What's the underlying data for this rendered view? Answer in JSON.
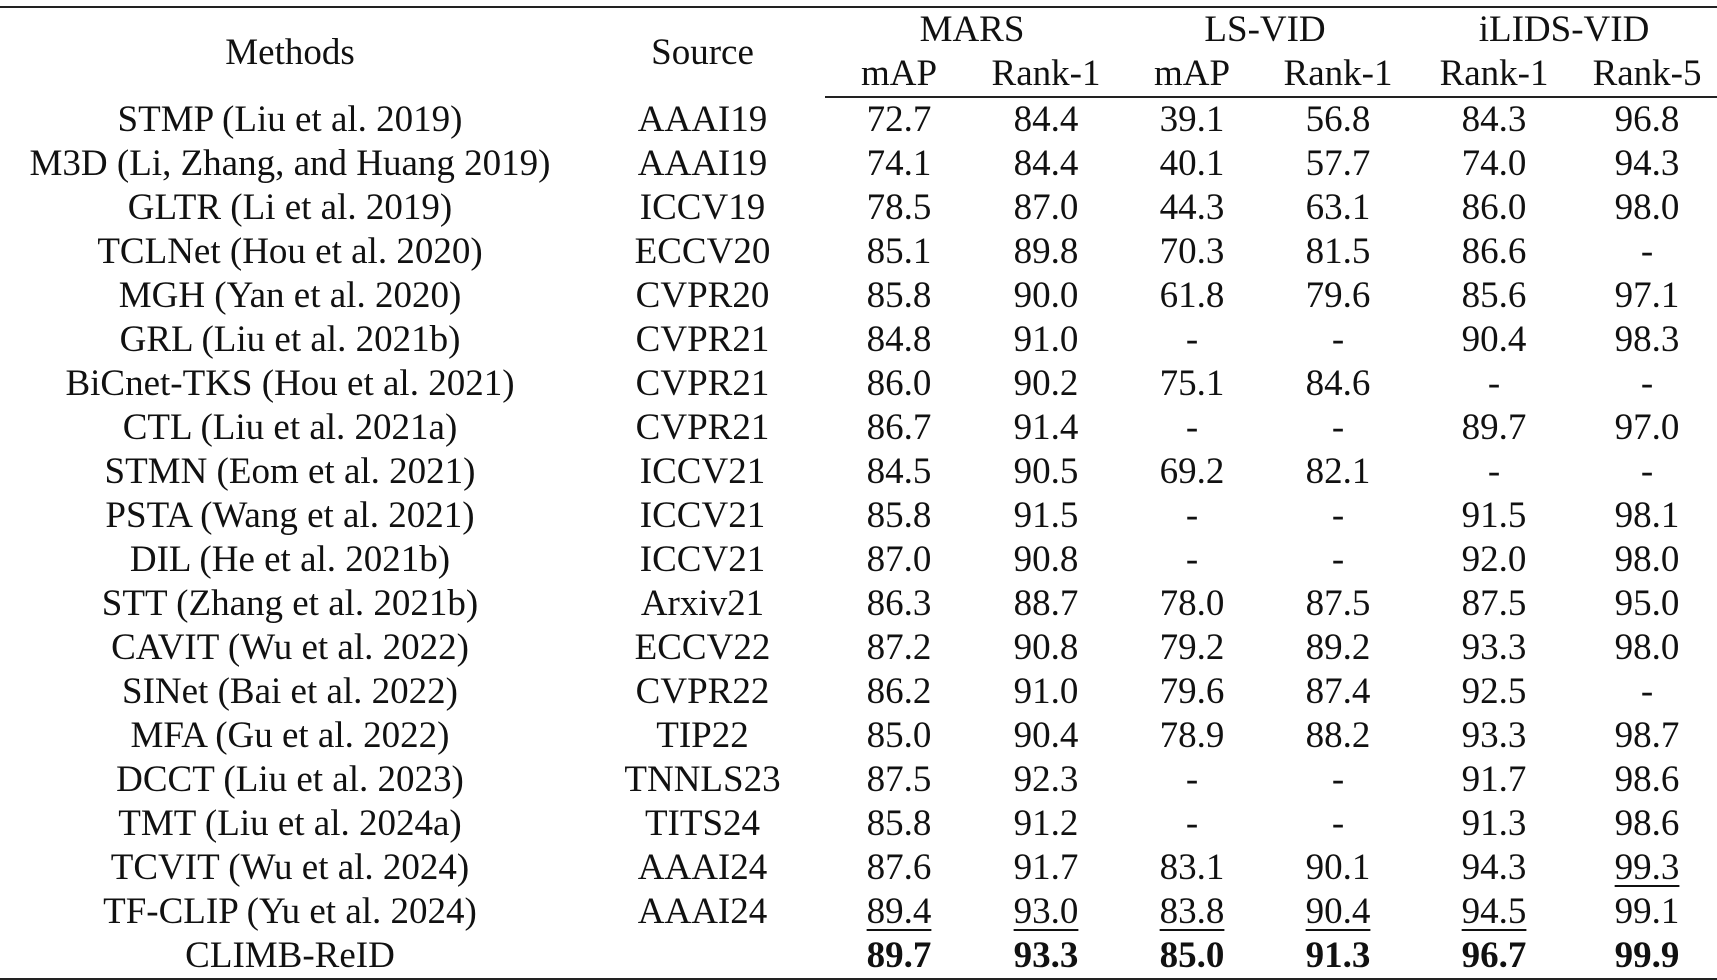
{
  "header": {
    "methods": "Methods",
    "source": "Source",
    "datasets": [
      "MARS",
      "LS-VID",
      "iLIDS-VID"
    ],
    "metrics": [
      "mAP",
      "Rank-1",
      "mAP",
      "Rank-1",
      "Rank-1",
      "Rank-5"
    ]
  },
  "rows": [
    {
      "method": "STMP (Liu et al. 2019)",
      "source": "AAAI19",
      "vals": [
        "72.7",
        "84.4",
        "39.1",
        "56.8",
        "84.3",
        "96.8"
      ]
    },
    {
      "method": "M3D (Li, Zhang, and Huang 2019)",
      "source": "AAAI19",
      "vals": [
        "74.1",
        "84.4",
        "40.1",
        "57.7",
        "74.0",
        "94.3"
      ]
    },
    {
      "method": "GLTR (Li et al. 2019)",
      "source": "ICCV19",
      "vals": [
        "78.5",
        "87.0",
        "44.3",
        "63.1",
        "86.0",
        "98.0"
      ]
    },
    {
      "method": "TCLNet (Hou et al. 2020)",
      "source": "ECCV20",
      "vals": [
        "85.1",
        "89.8",
        "70.3",
        "81.5",
        "86.6",
        "-"
      ]
    },
    {
      "method": "MGH (Yan et al. 2020)",
      "source": "CVPR20",
      "vals": [
        "85.8",
        "90.0",
        "61.8",
        "79.6",
        "85.6",
        "97.1"
      ]
    },
    {
      "method": "GRL (Liu et al. 2021b)",
      "source": "CVPR21",
      "vals": [
        "84.8",
        "91.0",
        "-",
        "-",
        "90.4",
        "98.3"
      ]
    },
    {
      "method": "BiCnet-TKS (Hou et al. 2021)",
      "source": "CVPR21",
      "vals": [
        "86.0",
        "90.2",
        "75.1",
        "84.6",
        "-",
        "-"
      ]
    },
    {
      "method": "CTL (Liu et al. 2021a)",
      "source": "CVPR21",
      "vals": [
        "86.7",
        "91.4",
        "-",
        "-",
        "89.7",
        "97.0"
      ]
    },
    {
      "method": "STMN (Eom et al. 2021)",
      "source": "ICCV21",
      "vals": [
        "84.5",
        "90.5",
        "69.2",
        "82.1",
        "-",
        "-"
      ]
    },
    {
      "method": "PSTA (Wang et al. 2021)",
      "source": "ICCV21",
      "vals": [
        "85.8",
        "91.5",
        "-",
        "-",
        "91.5",
        "98.1"
      ]
    },
    {
      "method": "DIL (He et al. 2021b)",
      "source": "ICCV21",
      "vals": [
        "87.0",
        "90.8",
        "-",
        "-",
        "92.0",
        "98.0"
      ]
    },
    {
      "method": "STT (Zhang et al. 2021b)",
      "source": "Arxiv21",
      "vals": [
        "86.3",
        "88.7",
        "78.0",
        "87.5",
        "87.5",
        "95.0"
      ]
    },
    {
      "method": "CAVIT (Wu et al. 2022)",
      "source": "ECCV22",
      "vals": [
        "87.2",
        "90.8",
        "79.2",
        "89.2",
        "93.3",
        "98.0"
      ]
    },
    {
      "method": "SINet (Bai et al. 2022)",
      "source": "CVPR22",
      "vals": [
        "86.2",
        "91.0",
        "79.6",
        "87.4",
        "92.5",
        "-"
      ]
    },
    {
      "method": "MFA (Gu et al. 2022)",
      "source": "TIP22",
      "vals": [
        "85.0",
        "90.4",
        "78.9",
        "88.2",
        "93.3",
        "98.7"
      ]
    },
    {
      "method": "DCCT (Liu et al. 2023)",
      "source": "TNNLS23",
      "vals": [
        "87.5",
        "92.3",
        "-",
        "-",
        "91.7",
        "98.6"
      ]
    },
    {
      "method": "TMT (Liu et al. 2024a)",
      "source": "TITS24",
      "vals": [
        "85.8",
        "91.2",
        "-",
        "-",
        "91.3",
        "98.6"
      ]
    },
    {
      "method": "TCVIT (Wu et al. 2024)",
      "source": "AAAI24",
      "vals": [
        "87.6",
        "91.7",
        "83.1",
        "90.1",
        "94.3",
        "99.3"
      ]
    },
    {
      "method": "TF-CLIP (Yu et al. 2024)",
      "source": "AAAI24",
      "vals": [
        "89.4",
        "93.0",
        "83.8",
        "90.4",
        "94.5",
        "99.1"
      ]
    },
    {
      "method": "CLIMB-ReID",
      "source": "",
      "vals": [
        "89.7",
        "93.3",
        "85.0",
        "91.3",
        "96.7",
        "99.9"
      ]
    }
  ]
}
